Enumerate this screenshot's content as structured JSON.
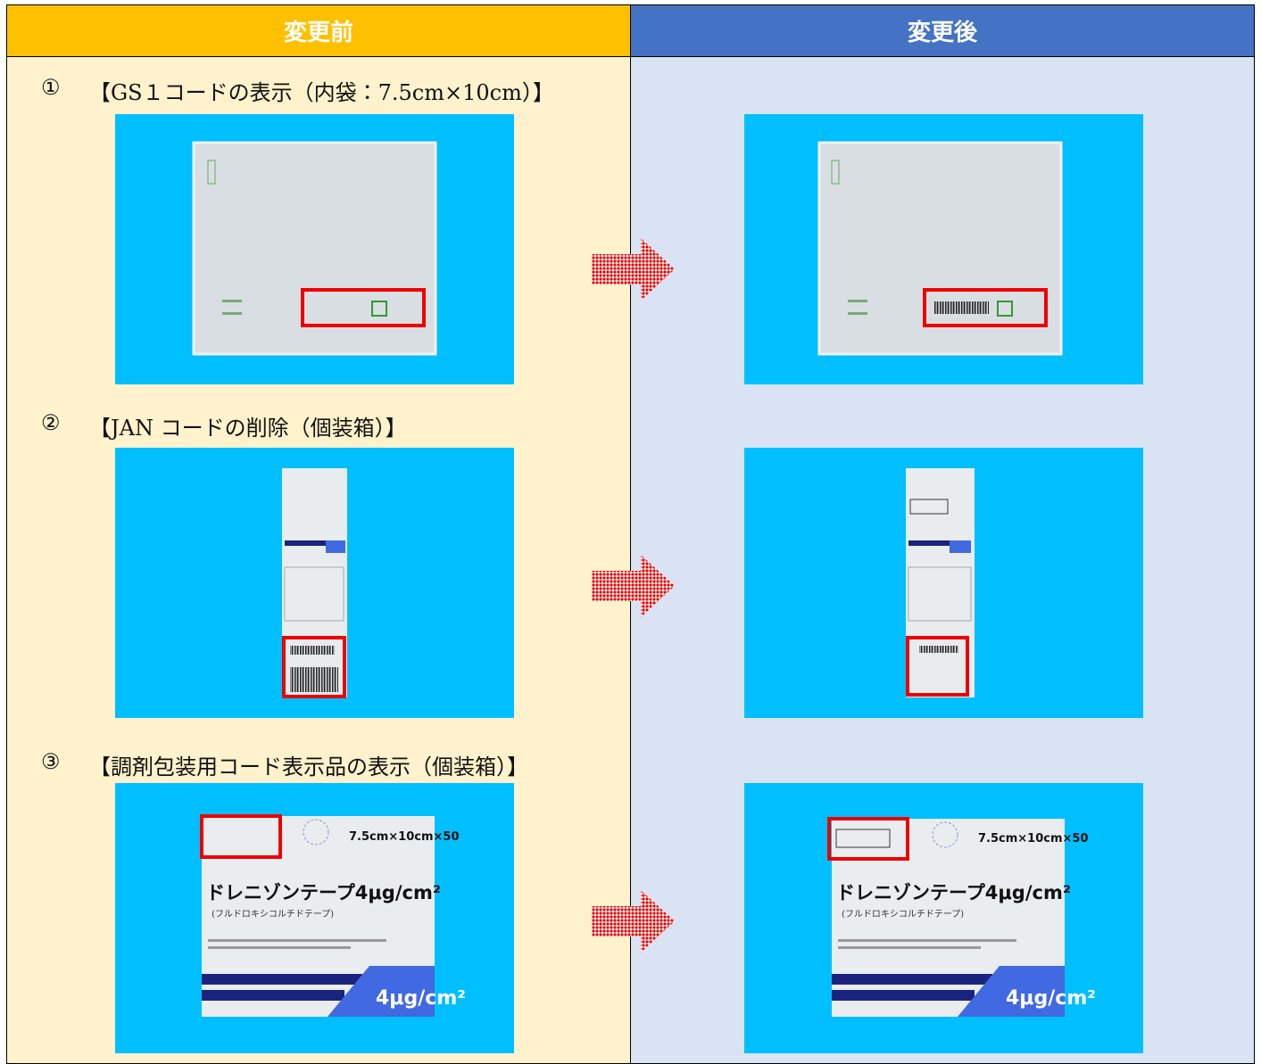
{
  "header": {
    "before": "変更前",
    "after": "変更後"
  },
  "sections": [
    {
      "number": "①",
      "label": "【GS１コードの表示（内袋：7.5cm×10cm）】"
    },
    {
      "number": "②",
      "label": "【JAN コードの削除（個装箱）】"
    },
    {
      "number": "③",
      "label": "【調剤包装用コード表示品の表示（個装箱）】"
    }
  ],
  "package_text": {
    "size": "7.5cm×10cm×50",
    "product": "ドレニゾンテープ4μg/cm²",
    "generic": "(フルドロキシコルチドテープ)",
    "strength": "4μg/cm²"
  }
}
